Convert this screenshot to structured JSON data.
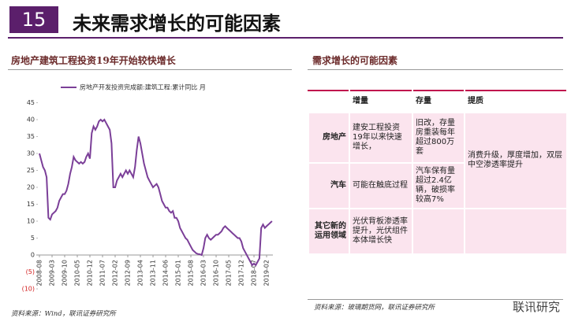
{
  "header": {
    "number": "15",
    "title": "未来需求增长的可能因素"
  },
  "left": {
    "subtitle": "房地产建筑工程投资19年开始较快增长",
    "source": "资料来源：Wind，联讯证券研究所"
  },
  "chart_data": {
    "type": "line",
    "categories": [
      "2008-08",
      null,
      null,
      null,
      null,
      null,
      null,
      "2009-03",
      null,
      null,
      null,
      null,
      null,
      null,
      "2009-10",
      null,
      null,
      null,
      null,
      null,
      null,
      "2010-05",
      null,
      null,
      null,
      null,
      null,
      null,
      "2010-12",
      null,
      null,
      null,
      null,
      null,
      null,
      "2011-07",
      null,
      null,
      null,
      null,
      null,
      null,
      "2012-02",
      null,
      null,
      null,
      null,
      null,
      null,
      "2012-09",
      null,
      null,
      null,
      null,
      null,
      null,
      "2013-04",
      null,
      null,
      null,
      null,
      null,
      null,
      "2013-11",
      null,
      null,
      null,
      null,
      null,
      null,
      "2014-06",
      null,
      null,
      null,
      null,
      null,
      null,
      "2015-01",
      null,
      null,
      null,
      null,
      null,
      null,
      "2015-08",
      null,
      null,
      null,
      null,
      null,
      null,
      "2016-03",
      null,
      null,
      null,
      null,
      null,
      null,
      "2016-10",
      null,
      null,
      null,
      null,
      null,
      null,
      "2017-05",
      null,
      null,
      null,
      null,
      null,
      null,
      "2017-12",
      null,
      null,
      null,
      null,
      null,
      null,
      "2018-07",
      null,
      null,
      null,
      null,
      null,
      null,
      "2019-02",
      null,
      null,
      null
    ],
    "series": [
      {
        "name": "房地产开发投资完成额:建筑工程:累计同比 月",
        "color": "#7b3f98",
        "values": [
          30,
          28,
          26,
          25,
          23,
          11,
          10.5,
          12,
          12.5,
          13,
          14,
          16,
          17,
          18,
          18,
          19,
          21,
          24,
          26,
          29,
          28,
          27.5,
          27,
          27.5,
          27,
          27.5,
          29,
          30,
          28.5,
          36,
          38,
          37,
          38,
          39.5,
          40,
          39.5,
          40,
          39,
          38,
          37,
          33,
          20,
          20,
          22,
          23,
          24,
          23,
          24,
          25,
          24,
          25,
          24,
          23,
          26,
          31,
          35,
          33,
          30,
          27,
          25,
          23,
          22,
          21,
          20,
          20.5,
          21,
          20,
          18,
          16,
          15,
          14,
          14,
          13,
          12.5,
          13,
          11,
          11,
          10,
          8,
          7,
          6,
          5,
          4.5,
          3.5,
          2.5,
          1.5,
          1,
          0.5,
          0.3,
          0.2,
          0,
          2,
          5,
          6,
          5,
          4.5,
          5,
          5.5,
          6,
          6,
          6.5,
          7,
          8,
          8.5,
          8,
          7.5,
          7,
          6.5,
          6,
          5.5,
          5,
          5,
          4,
          2,
          1,
          0,
          -1,
          -2,
          -3,
          -2.5,
          -3,
          -2,
          -1,
          8,
          9,
          8,
          8.5,
          9,
          9.5,
          10
        ]
      }
    ],
    "ylim": [
      -10,
      45
    ],
    "yticks": [
      {
        "value": -10,
        "label": "(10)"
      },
      {
        "value": -5,
        "label": "(5)"
      },
      0,
      5,
      10,
      15,
      20,
      25,
      30,
      35,
      40,
      45
    ]
  },
  "right": {
    "subtitle": "需求增长的可能因素",
    "table": {
      "header": [
        "增量",
        "存量",
        "提质"
      ],
      "rows": [
        [
          "房地产",
          "建安工程投资19年以来快速增长，",
          "旧改，存量房重装每年超过800万套",
          "消费升级，厚度增加，双层中空渗透率提升"
        ],
        [
          "汽车",
          "可能在触底过程",
          "汽车保有量超过2.4亿辆，破损率较高7%"
        ],
        [
          "其它新的运用领域",
          "光伏背板渗透率提升，光伏组件本体增长快"
        ]
      ]
    },
    "source": "资料来源：玻璃期货网，联讯证券研究所"
  },
  "watermark": "联讯研究"
}
